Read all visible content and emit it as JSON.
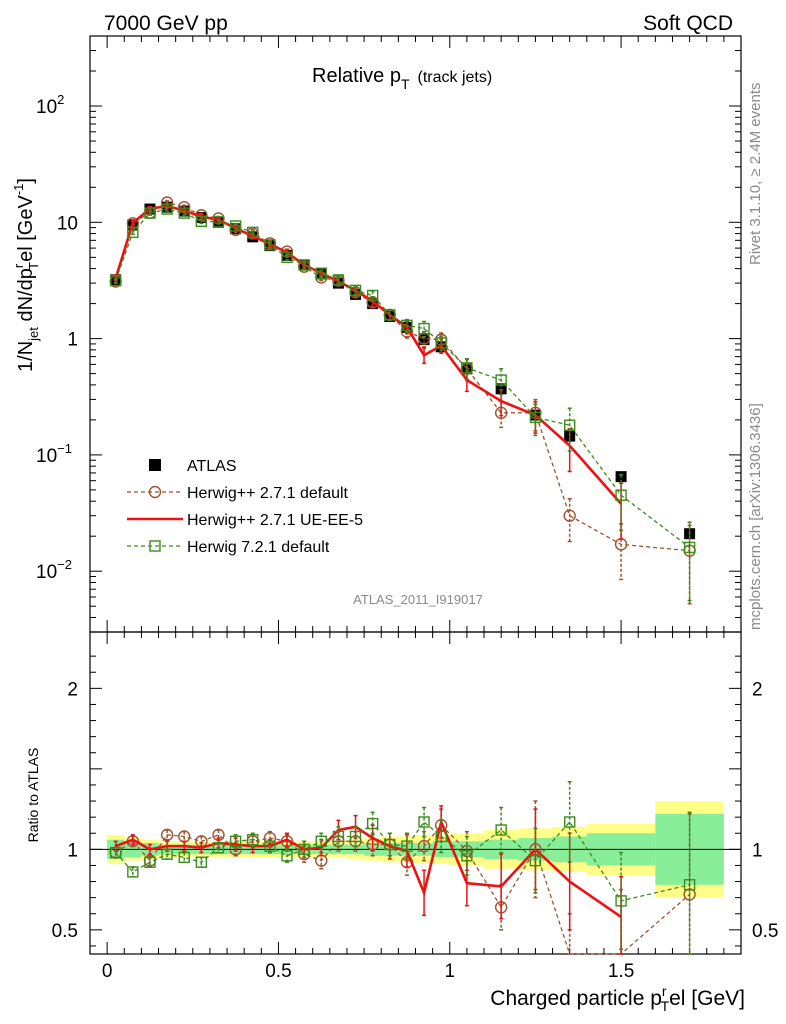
{
  "header": {
    "left": "7000 GeV pp",
    "right": "Soft QCD"
  },
  "side_labels": {
    "rivet": "Rivet 3.1.10, ≥ 2.4M events",
    "mcplots": "mcplots.cern.ch [arXiv:1306.3436]"
  },
  "watermark": "ATLAS_2011_I919017",
  "chart_data": [
    {
      "panel": "main",
      "type": "scatter",
      "title": "Relative p",
      "title_sub": "T",
      "title_suffix": "(track jets)",
      "ylabel": "1/N",
      "ylabel_sub1": "jet",
      "ylabel_mid": " dN/dp",
      "ylabel_sup": "r",
      "ylabel_sub2": "T",
      "ylabel_tail": "el [GeV",
      "ylabel_sup2": "-1",
      "ylabel_end": "]",
      "yscale": "log",
      "ylim": [
        0.003,
        400
      ],
      "xlim": [
        -0.05,
        1.85
      ],
      "ytick_labels": [
        {
          "v": 0.01,
          "base": "10",
          "exp": "−2"
        },
        {
          "v": 0.1,
          "base": "10",
          "exp": "−1"
        },
        {
          "v": 1,
          "base": "1",
          "exp": ""
        },
        {
          "v": 10,
          "base": "10",
          "exp": ""
        },
        {
          "v": 100,
          "base": "10",
          "exp": "2"
        }
      ],
      "legend_position": "lower-left",
      "series": [
        {
          "name": "ATLAS",
          "color": "#000000",
          "marker": "square-filled",
          "x": [
            0.025,
            0.075,
            0.125,
            0.175,
            0.225,
            0.275,
            0.325,
            0.375,
            0.425,
            0.475,
            0.525,
            0.575,
            0.625,
            0.675,
            0.725,
            0.775,
            0.825,
            0.875,
            0.925,
            0.975,
            1.05,
            1.15,
            1.25,
            1.35,
            1.5,
            1.7
          ],
          "y": [
            3.2,
            9.5,
            13.0,
            13.5,
            12.5,
            11.0,
            10.0,
            8.8,
            7.5,
            6.3,
            5.2,
            4.3,
            3.6,
            3.0,
            2.4,
            2.0,
            1.55,
            1.25,
            0.98,
            0.85,
            0.55,
            0.37,
            0.22,
            0.145,
            0.065,
            0.021
          ]
        },
        {
          "name": "Herwig++ 2.7.1 default",
          "color": "#a0522d",
          "marker": "circle-open",
          "dashed": true,
          "x": [
            0.025,
            0.075,
            0.125,
            0.175,
            0.225,
            0.275,
            0.325,
            0.375,
            0.425,
            0.475,
            0.525,
            0.575,
            0.625,
            0.675,
            0.725,
            0.775,
            0.825,
            0.875,
            0.925,
            0.975,
            1.05,
            1.15,
            1.25,
            1.35,
            1.5,
            1.7
          ],
          "y": [
            3.1,
            9.8,
            12.1,
            14.8,
            13.5,
            11.5,
            10.8,
            8.6,
            8.0,
            6.6,
            5.6,
            4.15,
            3.35,
            3.15,
            2.5,
            2.05,
            1.6,
            1.15,
            1.0,
            0.98,
            0.55,
            0.23,
            0.23,
            0.03,
            0.017,
            0.015
          ]
        },
        {
          "name": "Herwig++ 2.7.1 UE-EE-5",
          "color": "#ee1111",
          "marker": "none",
          "line": "solid",
          "x": [
            0.025,
            0.075,
            0.125,
            0.175,
            0.225,
            0.275,
            0.325,
            0.375,
            0.425,
            0.475,
            0.525,
            0.575,
            0.625,
            0.675,
            0.725,
            0.775,
            0.825,
            0.875,
            0.925,
            0.975,
            1.05,
            1.15,
            1.25,
            1.35,
            1.5
          ],
          "y": [
            3.3,
            9.9,
            13.1,
            13.8,
            12.6,
            11.2,
            10.5,
            8.9,
            7.6,
            6.5,
            5.5,
            4.3,
            3.65,
            3.1,
            2.6,
            2.1,
            1.6,
            1.25,
            0.72,
            0.87,
            0.44,
            0.29,
            0.22,
            0.12,
            0.038
          ]
        },
        {
          "name": "Herwig 7.2.1 default",
          "color": "#3a8d1a",
          "marker": "square-open",
          "dashed": true,
          "x": [
            0.025,
            0.075,
            0.125,
            0.175,
            0.225,
            0.275,
            0.325,
            0.375,
            0.425,
            0.475,
            0.525,
            0.575,
            0.625,
            0.675,
            0.725,
            0.775,
            0.825,
            0.875,
            0.925,
            0.975,
            1.05,
            1.15,
            1.25,
            1.35,
            1.5,
            1.7
          ],
          "y": [
            3.15,
            8.2,
            12.0,
            13.0,
            12.0,
            10.2,
            10.1,
            9.3,
            8.2,
            6.4,
            5.0,
            4.3,
            3.65,
            3.2,
            2.6,
            2.35,
            1.6,
            1.3,
            1.22,
            0.92,
            0.56,
            0.44,
            0.21,
            0.18,
            0.045,
            0.016
          ]
        }
      ]
    },
    {
      "panel": "ratio",
      "type": "line",
      "ylabel": "Ratio to ATLAS",
      "xlabel": "Charged particle p",
      "xlabel_sup": "r",
      "xlabel_sub": "T",
      "xlabel_tail": "el [GeV]",
      "ylim": [
        0.35,
        2.35
      ],
      "xlim": [
        -0.05,
        1.85
      ],
      "yticks": [
        0.5,
        1,
        2
      ],
      "ytick_labels": [
        "0.5",
        "1",
        "2"
      ],
      "xticks": [
        0,
        0.5,
        1,
        1.5
      ],
      "xtick_labels": [
        "0",
        "0.5",
        "1",
        "1.5"
      ],
      "uncertainty_bands": {
        "x_edges": [
          0.0,
          0.05,
          0.1,
          0.15,
          0.2,
          0.25,
          0.3,
          0.35,
          0.4,
          0.45,
          0.5,
          0.55,
          0.6,
          0.65,
          0.7,
          0.75,
          0.8,
          0.85,
          0.9,
          0.95,
          1.0,
          1.1,
          1.2,
          1.3,
          1.4,
          1.6,
          1.8
        ],
        "inner": [
          0.06,
          0.05,
          0.04,
          0.03,
          0.03,
          0.03,
          0.03,
          0.03,
          0.03,
          0.03,
          0.03,
          0.03,
          0.03,
          0.03,
          0.03,
          0.04,
          0.04,
          0.04,
          0.04,
          0.05,
          0.05,
          0.06,
          0.07,
          0.08,
          0.1,
          0.22
        ],
        "outer": [
          0.09,
          0.07,
          0.06,
          0.05,
          0.05,
          0.05,
          0.05,
          0.05,
          0.05,
          0.05,
          0.05,
          0.05,
          0.05,
          0.05,
          0.06,
          0.07,
          0.08,
          0.08,
          0.09,
          0.09,
          0.1,
          0.12,
          0.13,
          0.14,
          0.16,
          0.3
        ]
      },
      "series": [
        {
          "name": "Herwig++ 2.7.1 default",
          "x": [
            0.025,
            0.075,
            0.125,
            0.175,
            0.225,
            0.275,
            0.325,
            0.375,
            0.425,
            0.475,
            0.525,
            0.575,
            0.625,
            0.675,
            0.725,
            0.775,
            0.825,
            0.875,
            0.925,
            0.975,
            1.05,
            1.15,
            1.25,
            1.35,
            1.5,
            1.7
          ],
          "y": [
            0.98,
            1.05,
            0.93,
            1.09,
            1.08,
            1.05,
            1.09,
            1.0,
            1.05,
            1.07,
            1.05,
            0.97,
            0.93,
            1.05,
            1.05,
            1.03,
            1.03,
            0.92,
            1.02,
            1.15,
            0.99,
            0.64,
            1.0,
            0.2,
            0.25,
            0.72
          ],
          "err": [
            0.03,
            0.03,
            0.03,
            0.03,
            0.03,
            0.03,
            0.03,
            0.04,
            0.04,
            0.04,
            0.04,
            0.05,
            0.05,
            0.06,
            0.06,
            0.07,
            0.07,
            0.08,
            0.09,
            0.1,
            0.12,
            0.14,
            0.3,
            0.4,
            0.5,
            0.5
          ]
        },
        {
          "name": "Herwig++ 2.7.1 UE-EE-5",
          "x": [
            0.025,
            0.075,
            0.125,
            0.175,
            0.225,
            0.275,
            0.325,
            0.375,
            0.425,
            0.475,
            0.525,
            0.575,
            0.625,
            0.675,
            0.725,
            0.775,
            0.825,
            0.875,
            0.925,
            0.975,
            1.05,
            1.15,
            1.25,
            1.35,
            1.5
          ],
          "y": [
            1.02,
            1.06,
            1.0,
            1.02,
            1.02,
            1.01,
            1.04,
            1.03,
            1.02,
            1.02,
            1.06,
            1.0,
            1.01,
            1.12,
            1.14,
            1.07,
            1.02,
            0.99,
            0.73,
            1.17,
            0.79,
            0.77,
            1.0,
            0.8,
            0.58
          ],
          "err": [
            0.03,
            0.03,
            0.03,
            0.03,
            0.03,
            0.03,
            0.03,
            0.04,
            0.04,
            0.04,
            0.04,
            0.05,
            0.05,
            0.06,
            0.07,
            0.08,
            0.08,
            0.1,
            0.14,
            0.1,
            0.14,
            0.2,
            0.25,
            0.3,
            0.25
          ]
        },
        {
          "name": "Herwig 7.2.1 default",
          "x": [
            0.025,
            0.075,
            0.125,
            0.175,
            0.225,
            0.275,
            0.325,
            0.375,
            0.425,
            0.475,
            0.525,
            0.575,
            0.625,
            0.675,
            0.725,
            0.775,
            0.825,
            0.875,
            0.925,
            0.975,
            1.05,
            1.15,
            1.25,
            1.35,
            1.5,
            1.7
          ],
          "y": [
            0.98,
            0.86,
            0.92,
            0.97,
            0.95,
            0.92,
            1.01,
            1.05,
            1.06,
            1.02,
            0.96,
            1.0,
            1.05,
            1.08,
            1.08,
            1.16,
            1.03,
            1.02,
            1.17,
            1.08,
            0.96,
            1.12,
            0.93,
            1.17,
            0.68,
            0.78
          ],
          "err": [
            0.03,
            0.03,
            0.03,
            0.03,
            0.03,
            0.03,
            0.03,
            0.04,
            0.04,
            0.04,
            0.04,
            0.05,
            0.05,
            0.06,
            0.06,
            0.07,
            0.07,
            0.08,
            0.09,
            0.1,
            0.12,
            0.14,
            0.2,
            0.25,
            0.3,
            0.45
          ]
        }
      ]
    }
  ]
}
